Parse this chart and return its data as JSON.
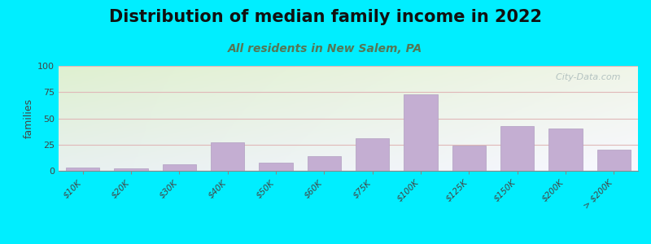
{
  "title": "Distribution of median family income in 2022",
  "subtitle": "All residents in New Salem, PA",
  "ylabel": "families",
  "categories": [
    "$10K",
    "$20K",
    "$30K",
    "$40K",
    "$50K",
    "$60K",
    "$75K",
    "$100K",
    "$125K",
    "$150K",
    "$200K",
    "> $200K"
  ],
  "values": [
    3,
    2,
    6,
    27,
    8,
    14,
    31,
    73,
    24,
    43,
    40,
    20
  ],
  "bar_color": "#c4aed2",
  "bar_edge_color": "#b09ec0",
  "ylim": [
    0,
    100
  ],
  "yticks": [
    0,
    25,
    50,
    75,
    100
  ],
  "bg_outer": "#00eeff",
  "bg_plot_topleft": "#dff0d0",
  "bg_plot_bottomright": "#f5f5ff",
  "title_fontsize": 15,
  "subtitle_fontsize": 10,
  "ylabel_fontsize": 9,
  "watermark": "  City-Data.com",
  "watermark_color": "#aababa",
  "grid_color": "#e0b8b8"
}
